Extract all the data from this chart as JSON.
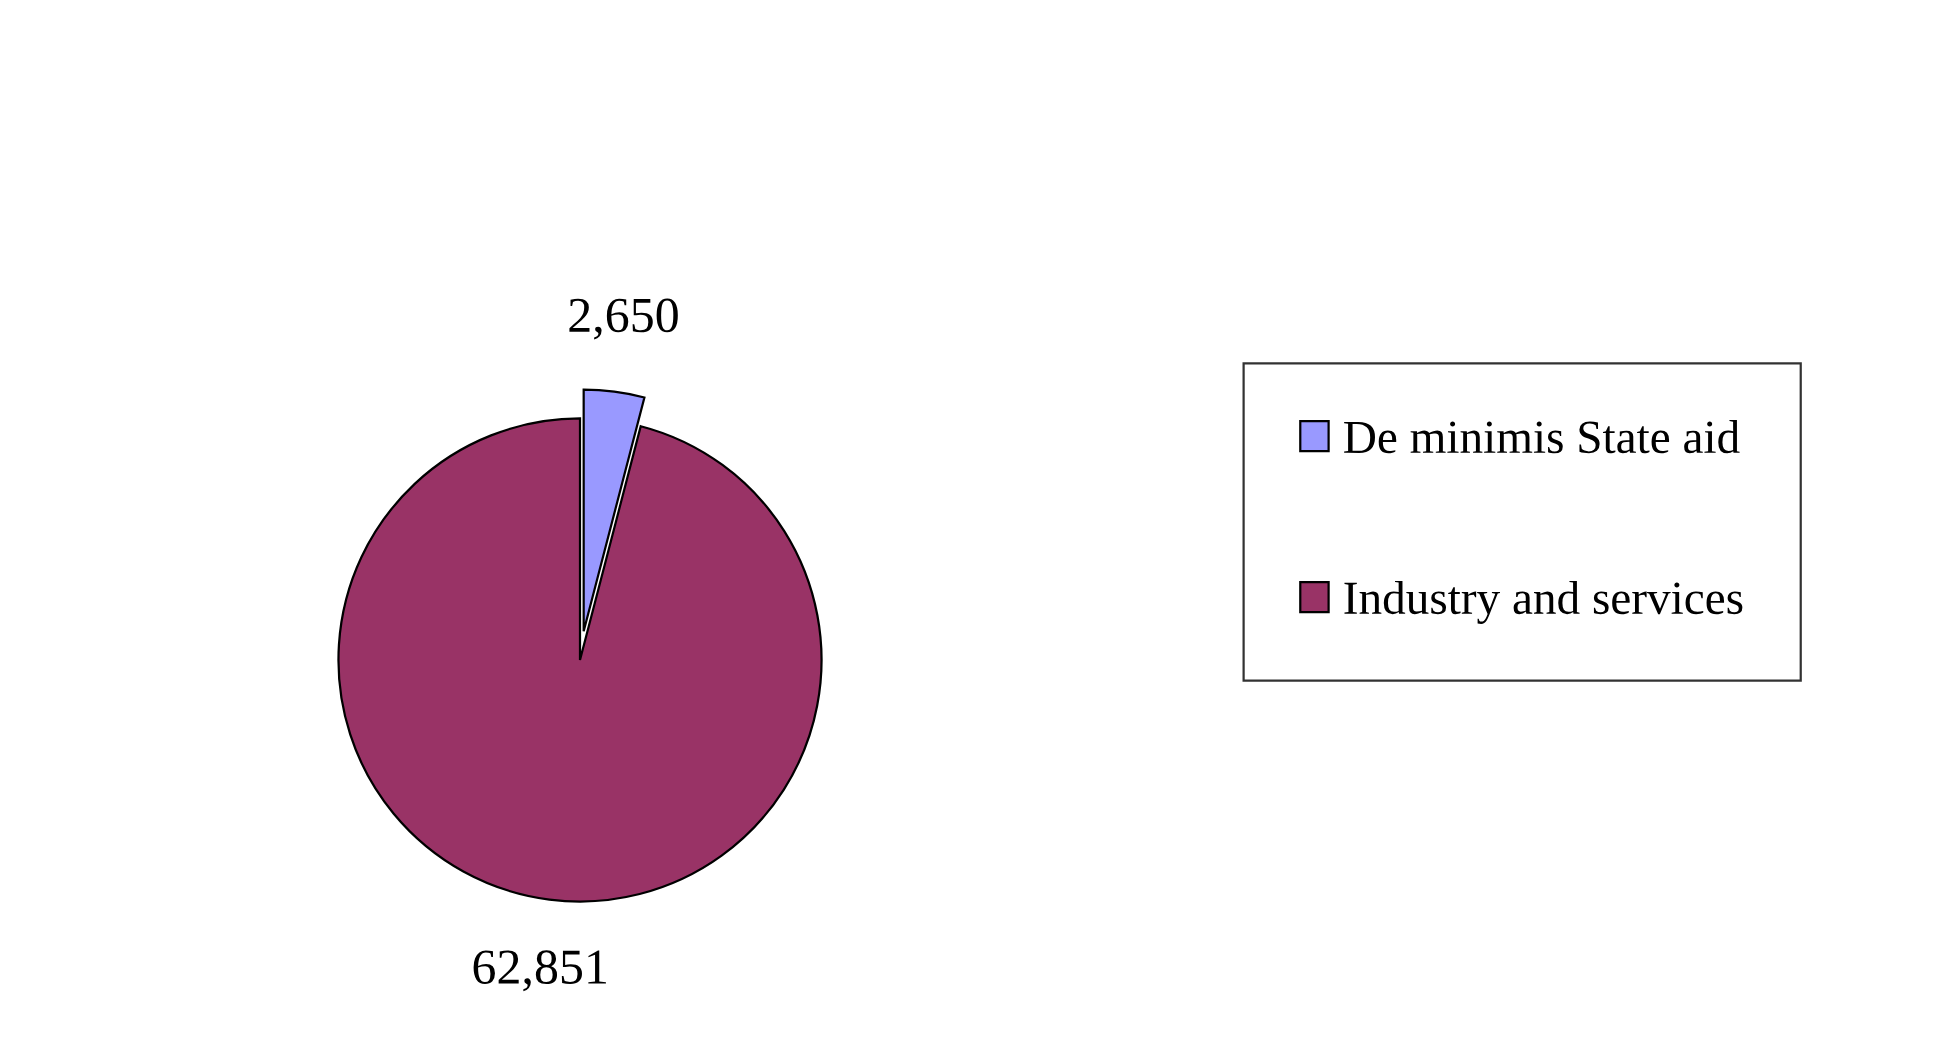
{
  "chart_data": {
    "type": "pie",
    "categories": [
      "De minimis State aid",
      "Industry and services"
    ],
    "values": [
      2650,
      62851
    ],
    "value_labels": [
      "2,650",
      "62,851"
    ],
    "colors": [
      "#9999ff",
      "#993366"
    ],
    "legend": "right"
  }
}
